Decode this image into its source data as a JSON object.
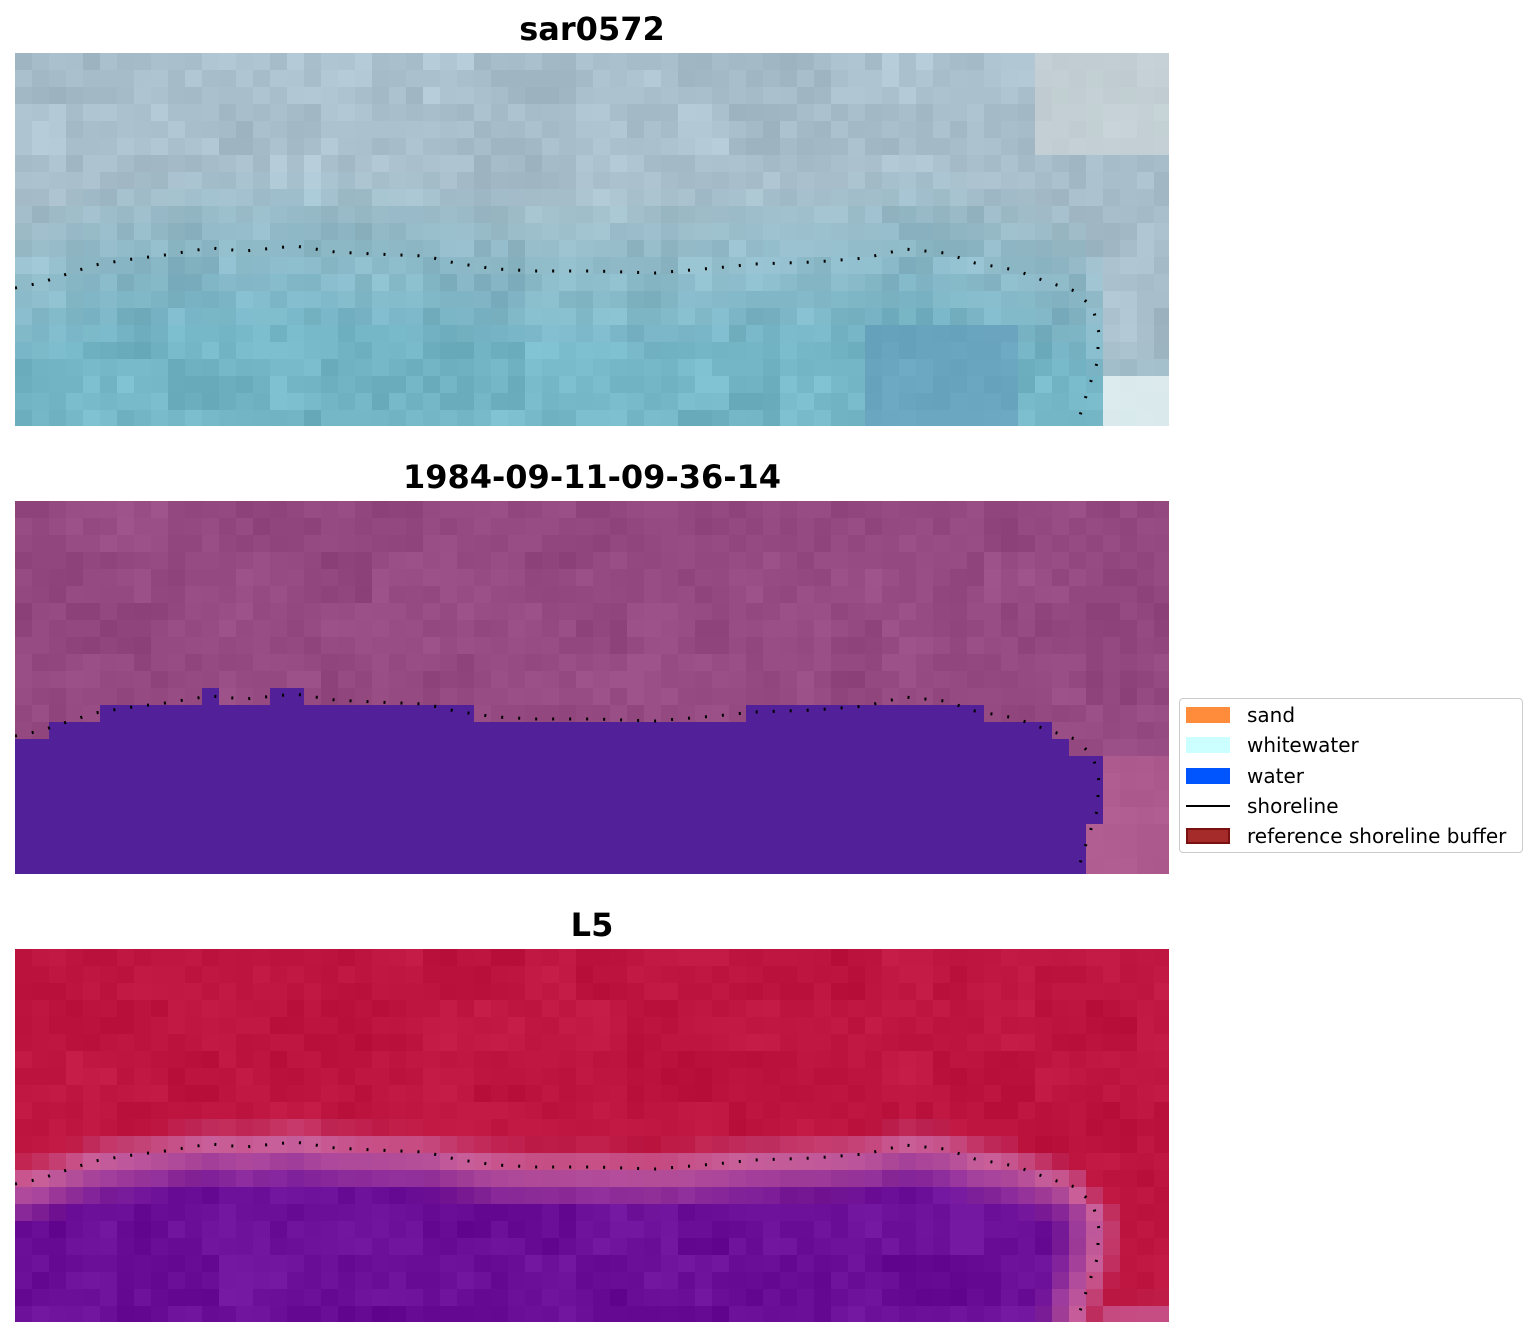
{
  "panels": [
    {
      "title": "sar0572",
      "style": "rgb"
    },
    {
      "title": "1984-09-11-09-36-14",
      "style": "classified"
    },
    {
      "title": "L5",
      "style": "mndwi"
    }
  ],
  "legend": {
    "items": [
      {
        "label": "sand",
        "kind": "patch",
        "color": "#ff8c3a"
      },
      {
        "label": "whitewater",
        "kind": "patch",
        "color": "#ccffff"
      },
      {
        "label": "water",
        "kind": "patch",
        "color": "#0055ff"
      },
      {
        "label": "shoreline",
        "kind": "line",
        "color": "#000000"
      },
      {
        "label": "reference shoreline buffer",
        "kind": "patch",
        "color": "#a52a2a",
        "edge": "#7a1010"
      }
    ]
  },
  "colors": {
    "rgb_water": "#74b5c6",
    "rgb_land": "#a9c0cc",
    "classified_land": "#964a82",
    "classified_water": "#52219a",
    "mndwi_land": "#bd1540",
    "mndwi_water": "#6a0e98",
    "mndwi_edge": "#c9609a",
    "shoreline": "#000000"
  }
}
